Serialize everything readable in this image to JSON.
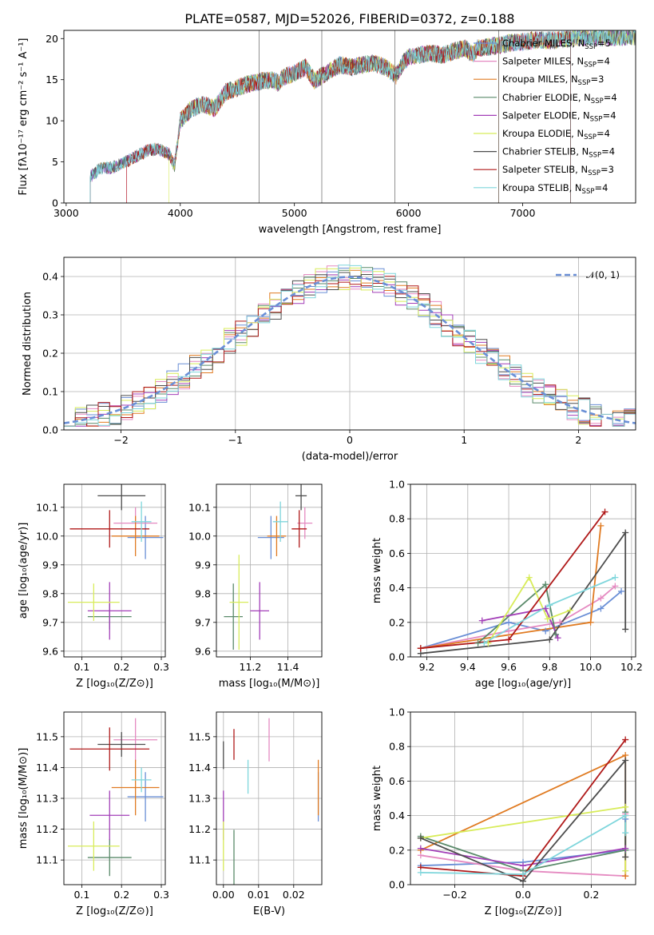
{
  "figure": {
    "title": "PLATE=0587, MJD=52026, FIBERID=0372, z=0.188"
  },
  "models": [
    {
      "name": "Chabrier MILES",
      "nssp": "5",
      "color": "#6a8fd6"
    },
    {
      "name": "Salpeter MILES",
      "nssp": "4",
      "color": "#e58ac1"
    },
    {
      "name": "Kroupa MILES",
      "nssp": "3",
      "color": "#e07b22"
    },
    {
      "name": "Chabrier ELODIE",
      "nssp": "4",
      "color": "#5a8a6a"
    },
    {
      "name": "Salpeter ELODIE",
      "nssp": "4",
      "color": "#a33fb8"
    },
    {
      "name": "Kroupa ELODIE",
      "nssp": "4",
      "color": "#d8ec5a"
    },
    {
      "name": "Chabrier STELIB",
      "nssp": "4",
      "color": "#4d4d4d"
    },
    {
      "name": "Salpeter STELIB",
      "nssp": "3",
      "color": "#b01a1a"
    },
    {
      "name": "Kroupa STELIB",
      "nssp": "4",
      "color": "#7fd6dc"
    }
  ],
  "chart_data": [
    {
      "id": "spectrum",
      "type": "line",
      "xlabel": "wavelength [Angstrom, rest frame]",
      "ylabel": "Flux [fλ10⁻¹⁷ erg cm⁻² s⁻¹ A⁻¹]",
      "xlim": [
        2980,
        7990
      ],
      "ylim": [
        0,
        21
      ],
      "xticks": [
        3000,
        4000,
        5000,
        6000,
        7000
      ],
      "yticks": [
        0,
        5,
        10,
        15,
        20
      ],
      "spectrum_x": [
        3210,
        3300,
        3400,
        3500,
        3600,
        3700,
        3800,
        3900,
        3950,
        4000,
        4100,
        4200,
        4300,
        4400,
        4500,
        4600,
        4700,
        4800,
        4860,
        4900,
        5000,
        5100,
        5175,
        5300,
        5400,
        5500,
        5600,
        5700,
        5800,
        5890,
        5950,
        6000,
        6100,
        6200,
        6300,
        6400,
        6500,
        6563,
        6600,
        6700,
        6800,
        6900,
        7000,
        7100,
        7200,
        7300,
        7400,
        7500
      ],
      "spectrum_y": [
        3.2,
        4.2,
        4.3,
        4.8,
        5.6,
        6.3,
        6.6,
        6.0,
        4.5,
        10.0,
        11.5,
        12.0,
        11.5,
        13.5,
        14.0,
        14.5,
        14.8,
        15.0,
        14.6,
        15.3,
        15.8,
        16.5,
        14.9,
        16.0,
        16.8,
        16.5,
        16.8,
        17.0,
        16.5,
        15.5,
        17.0,
        17.8,
        18.0,
        18.2,
        18.0,
        18.5,
        18.8,
        18.0,
        18.8,
        19.0,
        19.2,
        19.5,
        19.6,
        19.8,
        19.8,
        19.8,
        20.0,
        20.2
      ],
      "spectrum_start": [
        3210,
        3530,
        3210,
        3210,
        3210,
        3900,
        3210,
        3530,
        3210
      ],
      "spectrum_end": [
        7990,
        7990,
        6790,
        7990,
        7990,
        7990,
        7990,
        7420,
        7990
      ],
      "spikes_x": [
        4690,
        5240,
        5880,
        6790,
        7420
      ]
    },
    {
      "id": "residuals",
      "type": "histogram",
      "xlabel": "(data-model)/error",
      "ylabel": "Normed distribution",
      "xlim": [
        -2.5,
        2.5
      ],
      "ylim": [
        0,
        0.45
      ],
      "xticks": [
        -2,
        -1,
        0,
        1,
        2
      ],
      "xticklabels": [
        "−2",
        "−1",
        "0",
        "1",
        "2"
      ],
      "yticks": [
        0.0,
        0.1,
        0.2,
        0.3,
        0.4
      ],
      "yticklabels": [
        "0.0",
        "0.1",
        "0.2",
        "0.3",
        "0.4"
      ],
      "reference": {
        "name": "𝒩(0, 1)",
        "color": "#6a8fd6",
        "mean": 0,
        "sigma": 1
      },
      "bin_width": 0.1
    },
    {
      "id": "age-vs-Z",
      "type": "errorbar",
      "xlabel": "Z [log₁₀(Z/Z⊙)]",
      "ylabel": "age  [log₁₀(age/yr)]",
      "xlim": [
        0.055,
        0.31
      ],
      "ylim": [
        9.58,
        10.18
      ],
      "xticks": [
        0.1,
        0.2,
        0.3
      ],
      "xticklabels": [
        "0.1",
        "0.2",
        "0.3"
      ],
      "yticks": [
        9.6,
        9.7,
        9.8,
        9.9,
        10.0,
        10.1
      ],
      "yticklabels": [
        "9.6",
        "9.7",
        "9.8",
        "9.9",
        "10.0",
        "10.1"
      ],
      "points": [
        {
          "x": 0.26,
          "xerr": 0.045,
          "y": 9.995,
          "yerr": 0.075
        },
        {
          "x": 0.235,
          "xerr": 0.055,
          "y": 10.045,
          "yerr": 0.055
        },
        {
          "x": 0.235,
          "xerr": 0.06,
          "y": 10.0,
          "yerr": 0.07
        },
        {
          "x": 0.17,
          "xerr": 0.055,
          "y": 9.72,
          "yerr": 0.045
        },
        {
          "x": 0.17,
          "xerr": 0.055,
          "y": 9.74,
          "yerr": 0.1
        },
        {
          "x": 0.13,
          "xerr": 0.065,
          "y": 9.77,
          "yerr": 0.065
        },
        {
          "x": 0.2,
          "xerr": 0.06,
          "y": 10.14,
          "yerr": 0.05
        },
        {
          "x": 0.17,
          "xerr": 0.1,
          "y": 10.025,
          "yerr": 0.065
        },
        {
          "x": 0.25,
          "xerr": 0.025,
          "y": 10.05,
          "yerr": 0.07
        }
      ]
    },
    {
      "id": "age-vs-mass",
      "type": "errorbar",
      "xlabel": "mass [log₁₀(M/M⊙)]",
      "ylabel": "",
      "xlim": [
        11.02,
        11.58
      ],
      "ylim": [
        9.58,
        10.18
      ],
      "xticks": [
        11.2,
        11.4
      ],
      "xticklabels": [
        "11.2",
        "11.4"
      ],
      "yticks": [
        9.6,
        9.7,
        9.8,
        9.9,
        10.0,
        10.1
      ],
      "yticklabels": [
        "9.6",
        "9.7",
        "9.8",
        "9.9",
        "10.0",
        "10.1"
      ],
      "points": [
        {
          "x": 11.31,
          "xerr": 0.07,
          "y": 9.995,
          "yerr": 0.075
        },
        {
          "x": 11.49,
          "xerr": 0.04,
          "y": 10.045,
          "yerr": 0.055
        },
        {
          "x": 11.34,
          "xerr": 0.05,
          "y": 10.0,
          "yerr": 0.07
        },
        {
          "x": 11.11,
          "xerr": 0.05,
          "y": 9.72,
          "yerr": 0.115
        },
        {
          "x": 11.25,
          "xerr": 0.05,
          "y": 9.74,
          "yerr": 0.1
        },
        {
          "x": 11.14,
          "xerr": 0.05,
          "y": 9.77,
          "yerr": 0.165
        },
        {
          "x": 11.47,
          "xerr": 0.03,
          "y": 10.14,
          "yerr": 0.05
        },
        {
          "x": 11.46,
          "xerr": 0.04,
          "y": 10.025,
          "yerr": 0.065
        },
        {
          "x": 11.36,
          "xerr": 0.04,
          "y": 10.05,
          "yerr": 0.07
        }
      ]
    },
    {
      "id": "mass-weight-vs-age",
      "type": "line",
      "xlabel": "age  [log₁₀(age/yr)]",
      "ylabel": "mass weight",
      "xlim": [
        9.12,
        10.22
      ],
      "ylim": [
        0,
        1.0
      ],
      "xticks": [
        9.2,
        9.4,
        9.6,
        9.8,
        10.0,
        10.2
      ],
      "xticklabels": [
        "9.2",
        "9.4",
        "9.6",
        "9.8",
        "10.0",
        "10.2"
      ],
      "yticks": [
        0,
        0.2,
        0.4,
        0.6,
        0.8,
        1.0
      ],
      "yticklabels": [
        "0.0",
        "0.2",
        "0.4",
        "0.6",
        "0.8",
        "1.0"
      ],
      "series": [
        {
          "x": [
            9.17,
            9.6,
            9.78,
            10.05,
            10.15
          ],
          "y": [
            0.05,
            0.2,
            0.15,
            0.28,
            0.38
          ]
        },
        {
          "x": [
            9.17,
            9.6,
            9.85,
            10.05,
            10.12
          ],
          "y": [
            0.05,
            0.15,
            0.2,
            0.34,
            0.41
          ]
        },
        {
          "x": [
            9.17,
            10.0,
            10.05
          ],
          "y": [
            0.05,
            0.2,
            0.76
          ]
        },
        {
          "x": [
            9.45,
            9.78,
            9.83
          ],
          "y": [
            0.08,
            0.42,
            0.13
          ]
        },
        {
          "x": [
            9.47,
            9.78,
            9.84
          ],
          "y": [
            0.21,
            0.28,
            0.11
          ]
        },
        {
          "x": [
            9.5,
            9.7,
            9.79,
            9.9
          ],
          "y": [
            0.08,
            0.46,
            0.22,
            0.27
          ]
        },
        {
          "x": [
            9.17,
            9.8,
            10.17,
            10.17
          ],
          "y": [
            0.02,
            0.1,
            0.72,
            0.16
          ]
        },
        {
          "x": [
            9.17,
            9.6,
            10.07
          ],
          "y": [
            0.05,
            0.1,
            0.84
          ]
        },
        {
          "x": [
            9.48,
            9.8,
            10.12
          ],
          "y": [
            0.08,
            0.3,
            0.46
          ]
        }
      ]
    },
    {
      "id": "mass-vs-Z",
      "type": "errorbar",
      "xlabel": "Z [log₁₀(Z/Z⊙)]",
      "ylabel": "mass [log₁₀(M/M⊙)]",
      "xlim": [
        0.055,
        0.31
      ],
      "ylim": [
        11.02,
        11.58
      ],
      "xticks": [
        0.1,
        0.2,
        0.3
      ],
      "xticklabels": [
        "0.1",
        "0.2",
        "0.3"
      ],
      "yticks": [
        11.1,
        11.2,
        11.3,
        11.4,
        11.5
      ],
      "yticklabels": [
        "11.1",
        "11.2",
        "11.3",
        "11.4",
        "11.5"
      ],
      "points": [
        {
          "x": 0.26,
          "xerr": 0.045,
          "y": 11.305,
          "yerr": 0.08
        },
        {
          "x": 0.235,
          "xerr": 0.055,
          "y": 11.49,
          "yerr": 0.07
        },
        {
          "x": 0.235,
          "xerr": 0.06,
          "y": 11.335,
          "yerr": 0.09
        },
        {
          "x": 0.17,
          "xerr": 0.055,
          "y": 11.108,
          "yerr": 0.06
        },
        {
          "x": 0.17,
          "xerr": 0.05,
          "y": 11.245,
          "yerr": 0.08
        },
        {
          "x": 0.13,
          "xerr": 0.065,
          "y": 11.145,
          "yerr": 0.08
        },
        {
          "x": 0.2,
          "xerr": 0.06,
          "y": 11.475,
          "yerr": 0.04
        },
        {
          "x": 0.17,
          "xerr": 0.1,
          "y": 11.46,
          "yerr": 0.07
        },
        {
          "x": 0.25,
          "xerr": 0.025,
          "y": 11.36,
          "yerr": 0.04
        }
      ]
    },
    {
      "id": "mass-vs-ebv",
      "type": "errorbar",
      "xlabel": "E(B-V)",
      "ylabel": "",
      "xlim": [
        -0.002,
        0.028
      ],
      "ylim": [
        11.02,
        11.58
      ],
      "xticks": [
        0.0,
        0.01,
        0.02
      ],
      "xticklabels": [
        "0.00",
        "0.01",
        "0.02"
      ],
      "yticks": [
        11.1,
        11.2,
        11.3,
        11.4,
        11.5
      ],
      "yticklabels": [
        "11.1",
        "11.2",
        "11.3",
        "11.4",
        "11.5"
      ],
      "points": [
        {
          "x": 0.027,
          "xerr": 0,
          "y": 11.305,
          "yerr": 0.08
        },
        {
          "x": 0.013,
          "xerr": 0,
          "y": 11.49,
          "yerr": 0.07
        },
        {
          "x": 0.027,
          "xerr": 0,
          "y": 11.335,
          "yerr": 0.09
        },
        {
          "x": 0.003,
          "xerr": 0,
          "y": 11.108,
          "yerr": 0.09
        },
        {
          "x": 0.0,
          "xerr": 0,
          "y": 11.245,
          "yerr": 0.08
        },
        {
          "x": 0.0,
          "xerr": 0,
          "y": 11.145,
          "yerr": 0.08
        },
        {
          "x": 0.0,
          "xerr": 0,
          "y": 11.44,
          "yerr": 0.045
        },
        {
          "x": 0.003,
          "xerr": 0,
          "y": 11.475,
          "yerr": 0.05
        },
        {
          "x": 0.007,
          "xerr": 0,
          "y": 11.37,
          "yerr": 0.055
        }
      ]
    },
    {
      "id": "mass-weight-vs-Z",
      "type": "line",
      "xlabel": "Z [log₁₀(Z/Z⊙)]",
      "ylabel": "mass weight",
      "xlim": [
        -0.33,
        0.33
      ],
      "ylim": [
        0,
        1.0
      ],
      "xticks": [
        -0.2,
        0.0,
        0.2
      ],
      "xticklabels": [
        "−0.2",
        "0.0",
        "0.2"
      ],
      "yticks": [
        0,
        0.2,
        0.4,
        0.6,
        0.8,
        1.0
      ],
      "yticklabels": [
        "0.0",
        "0.2",
        "0.4",
        "0.6",
        "0.8",
        "1.0"
      ],
      "series": [
        {
          "x": [
            -0.3,
            0.0,
            0.3,
            0.3
          ],
          "y": [
            0.11,
            0.13,
            0.2,
            0.38
          ]
        },
        {
          "x": [
            -0.3,
            0.0,
            0.3,
            0.3
          ],
          "y": [
            0.17,
            0.08,
            0.05,
            0.41
          ]
        },
        {
          "x": [
            -0.3,
            0.3,
            0.3
          ],
          "y": [
            0.2,
            0.75,
            0.05
          ]
        },
        {
          "x": [
            -0.3,
            0.0,
            0.3,
            0.3
          ],
          "y": [
            0.28,
            0.08,
            0.2,
            0.42
          ]
        },
        {
          "x": [
            -0.3,
            0.0,
            0.3
          ],
          "y": [
            0.21,
            0.11,
            0.21
          ]
        },
        {
          "x": [
            -0.3,
            0.3,
            0.3
          ],
          "y": [
            0.27,
            0.45,
            0.08
          ]
        },
        {
          "x": [
            -0.3,
            0.0,
            0.3,
            0.3
          ],
          "y": [
            0.27,
            0.02,
            0.72,
            0.16
          ]
        },
        {
          "x": [
            -0.3,
            0.0,
            0.3
          ],
          "y": [
            0.1,
            0.05,
            0.84
          ]
        },
        {
          "x": [
            -0.3,
            0.0,
            0.3,
            0.3
          ],
          "y": [
            0.07,
            0.06,
            0.4,
            0.3
          ]
        }
      ]
    }
  ]
}
